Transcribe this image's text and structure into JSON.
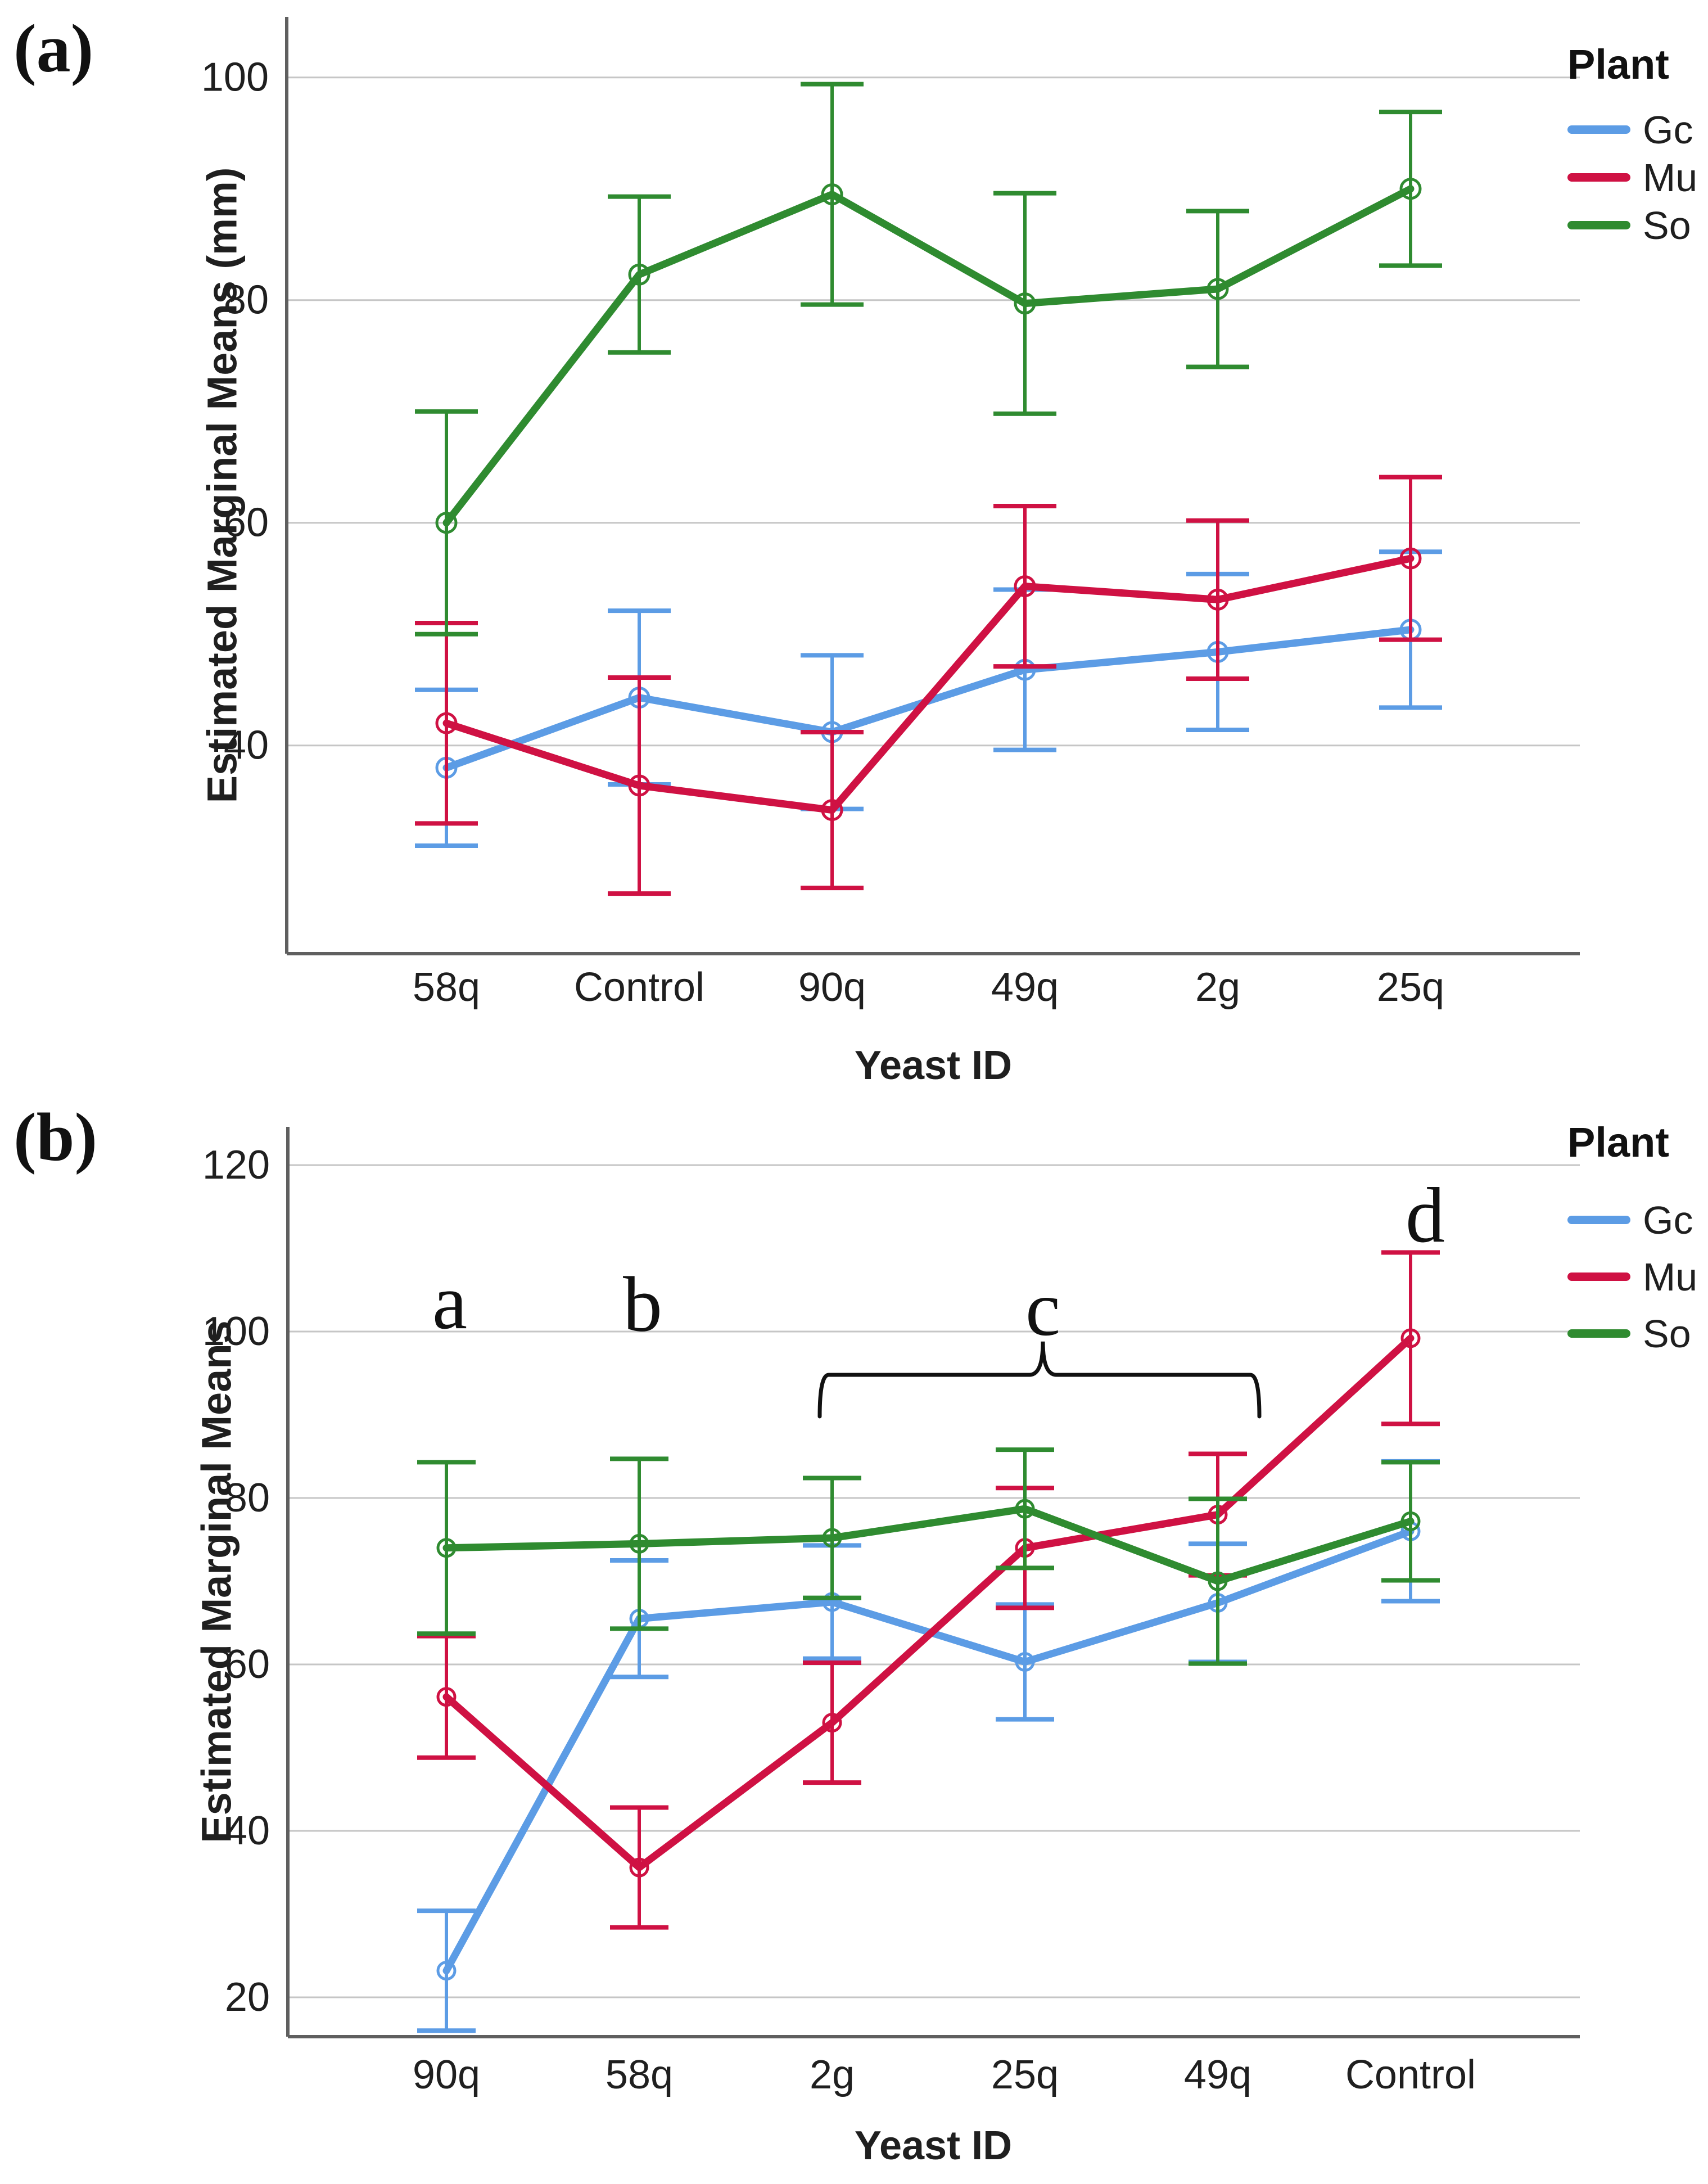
{
  "figure": {
    "panel_a": {
      "label": "(a)",
      "ylabel": "Estimated Marginal Means (mm)",
      "xlabel": "Yeast ID",
      "legend_title": "Plant"
    },
    "panel_b": {
      "label": "(b)",
      "ylabel": "Estimated Marginal Means",
      "xlabel": "Yeast ID",
      "legend_title": "Plant"
    }
  },
  "colors": {
    "gc": "#5C9CE5",
    "mu": "#CF1143",
    "so": "#2F8B30",
    "grid": "#C6C6C6",
    "axis": "#5F5F5F",
    "text": "#1F1F1F",
    "annotation": "#111111"
  },
  "chart_data": [
    {
      "type": "line",
      "panel": "a",
      "title": "",
      "xlabel": "Yeast ID",
      "ylabel": "Estimated Marginal Means (mm)",
      "legend_title": "Plant",
      "legend_position": "outside-top-right",
      "grid": true,
      "error_bars": true,
      "categories": [
        "58q",
        "Control",
        "90q",
        "49q",
        "2g",
        "25q"
      ],
      "yticks": [
        40,
        60,
        80,
        100
      ],
      "ylim": [
        21.3,
        105.4
      ],
      "series": [
        {
          "name": "Gc",
          "color": "#5C9CE5",
          "values": [
            38,
            44.3,
            41.2,
            46.8,
            48.4,
            50.4
          ],
          "err_lo": [
            31,
            36.5,
            34.3,
            39.6,
            41.4,
            43.4
          ],
          "err_hi": [
            45,
            52.1,
            48.1,
            54,
            55.4,
            57.4
          ]
        },
        {
          "name": "Mu",
          "color": "#CF1143",
          "values": [
            42,
            36.4,
            34.2,
            54.3,
            53.1,
            56.8
          ],
          "err_lo": [
            33,
            26.7,
            27.2,
            47.1,
            46,
            49.5
          ],
          "err_hi": [
            51,
            46.1,
            41.2,
            61.5,
            60.2,
            64.1
          ]
        },
        {
          "name": "So",
          "color": "#2F8B30",
          "values": [
            60,
            82.3,
            89.5,
            79.7,
            81,
            90
          ],
          "err_lo": [
            50,
            75.3,
            79.6,
            69.8,
            74,
            83.1
          ],
          "err_hi": [
            70,
            89.3,
            99.4,
            89.6,
            88,
            96.9
          ]
        }
      ]
    },
    {
      "type": "line",
      "panel": "b",
      "title": "",
      "xlabel": "Yeast ID",
      "ylabel": "Estimated Marginal Means",
      "legend_title": "Plant",
      "legend_position": "outside-top-right",
      "grid": true,
      "error_bars": true,
      "categories": [
        "90q",
        "58q",
        "2g",
        "25q",
        "49q",
        "Control"
      ],
      "yticks": [
        20,
        40,
        60,
        80,
        100,
        120
      ],
      "ylim": [
        15.3,
        124.6
      ],
      "series": [
        {
          "name": "Gc",
          "color": "#5C9CE5",
          "values": [
            23.2,
            65.5,
            67.5,
            60.3,
            67.4,
            76
          ],
          "err_lo": [
            16,
            58.5,
            60.7,
            53.4,
            60.3,
            67.6
          ],
          "err_hi": [
            30.4,
            72.5,
            74.3,
            67.2,
            74.5,
            84.4
          ]
        },
        {
          "name": "Mu",
          "color": "#CF1143",
          "values": [
            56.1,
            35.6,
            53,
            74,
            78,
            99.2
          ],
          "err_lo": [
            48.8,
            28.4,
            45.8,
            66.8,
            70.7,
            88.9
          ],
          "err_hi": [
            63.4,
            42.8,
            60.2,
            81.2,
            85.3,
            109.5
          ]
        },
        {
          "name": "So",
          "color": "#2F8B30",
          "values": [
            74,
            74.5,
            75.2,
            78.7,
            70,
            77.2
          ],
          "err_lo": [
            63.7,
            64.3,
            68,
            71.6,
            60.1,
            70.1
          ],
          "err_hi": [
            84.3,
            84.7,
            82.4,
            85.8,
            79.9,
            84.3
          ]
        }
      ],
      "annotations": [
        {
          "text": "a",
          "cat": 0,
          "dx": 6,
          "v": 100.4
        },
        {
          "text": "b",
          "cat": 1,
          "dx": 6,
          "v": 100.1
        },
        {
          "text": "c",
          "cat": 3,
          "dx": 32,
          "v": 99.6
        },
        {
          "text": "d",
          "cat": 5,
          "dx": 26,
          "v": 110.8
        }
      ],
      "bracket": {
        "x1_cat": 2,
        "x1_dx": -22,
        "x2_cat": 4,
        "x2_dx": 74,
        "bar_v": 94.8,
        "hook_v": 89.8,
        "notch_cat": 3,
        "notch_dx": 32,
        "notch_v": 98.8
      }
    }
  ]
}
